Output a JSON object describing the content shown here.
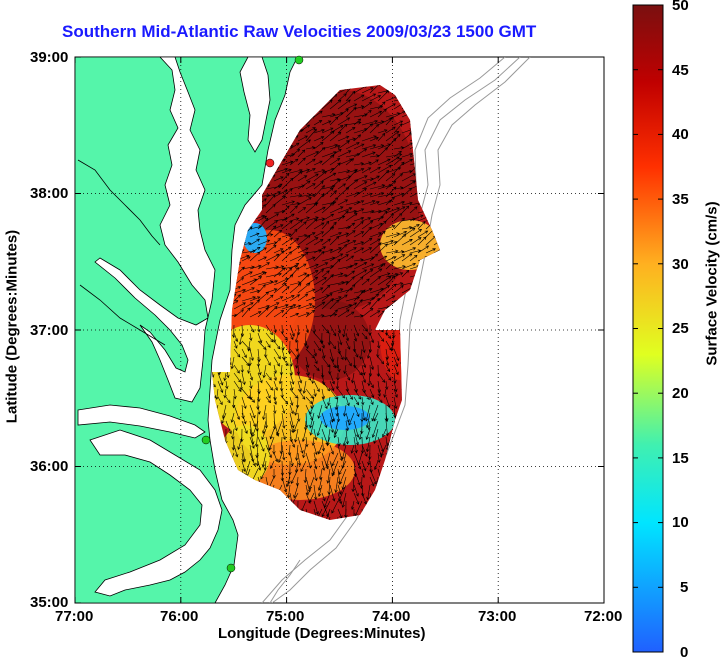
{
  "title": "Southern Mid-Atlantic Raw Velocities 2009/03/23 1500 GMT",
  "axes": {
    "x_label": "Longitude (Degrees:Minutes)",
    "y_label": "Latitude (Degrees:Minutes)",
    "x_ticks": [
      "77:00",
      "76:00",
      "75:00",
      "74:00",
      "73:00",
      "72:00"
    ],
    "y_ticks": [
      "39:00",
      "38:00",
      "37:00",
      "36:00",
      "35:00"
    ]
  },
  "colorbar": {
    "label": "Surface Velocity (cm/s)",
    "ticks": [
      "0",
      "5",
      "10",
      "15",
      "20",
      "25",
      "30",
      "35",
      "40",
      "45",
      "50"
    ],
    "min": 0,
    "max": 50
  },
  "colors": {
    "land": "#55f5aa",
    "water": "#ffffff",
    "title": "#1a1aff",
    "isobath": "#999999",
    "station_green": "#22cc22",
    "station_red": "#ee2222"
  }
}
